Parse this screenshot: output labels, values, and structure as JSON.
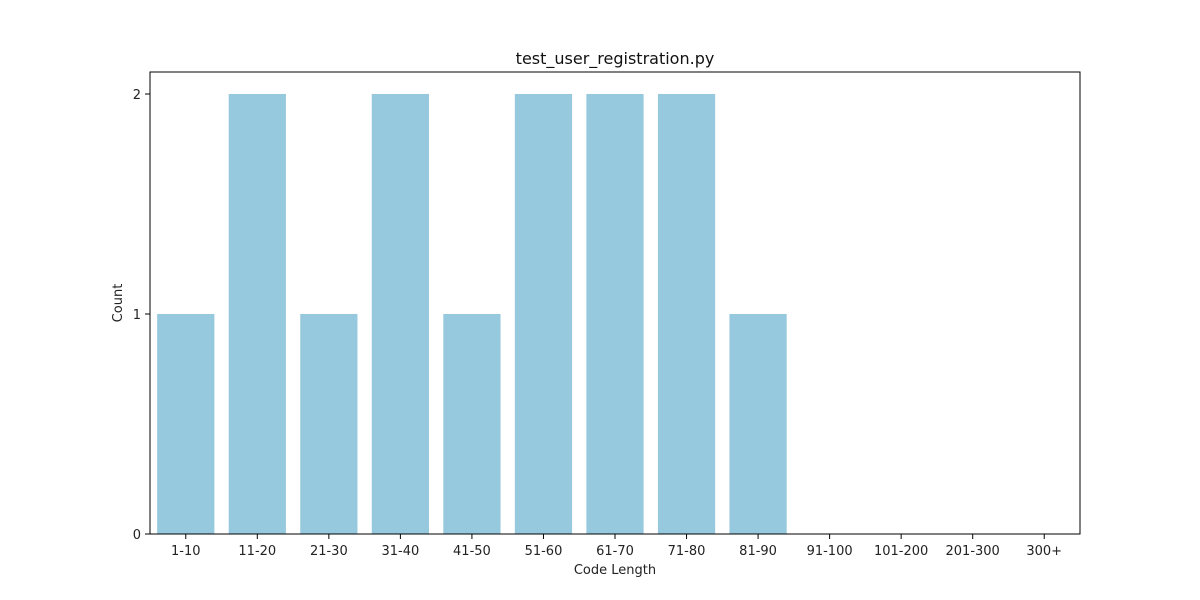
{
  "chart_data": {
    "type": "bar",
    "title": "test_user_registration.py",
    "xlabel": "Code Length",
    "ylabel": "Count",
    "categories": [
      "1-10",
      "11-20",
      "21-30",
      "31-40",
      "41-50",
      "51-60",
      "61-70",
      "71-80",
      "81-90",
      "91-100",
      "101-200",
      "201-300",
      "300+"
    ],
    "values": [
      1,
      2,
      1,
      2,
      1,
      2,
      2,
      2,
      1,
      0,
      0,
      0,
      0
    ],
    "ylim": [
      0,
      2.1
    ],
    "yticks": [
      "0",
      "1",
      "2"
    ],
    "grid": false,
    "colors": {
      "bar": "#96c9de",
      "axis": "#000000"
    }
  }
}
